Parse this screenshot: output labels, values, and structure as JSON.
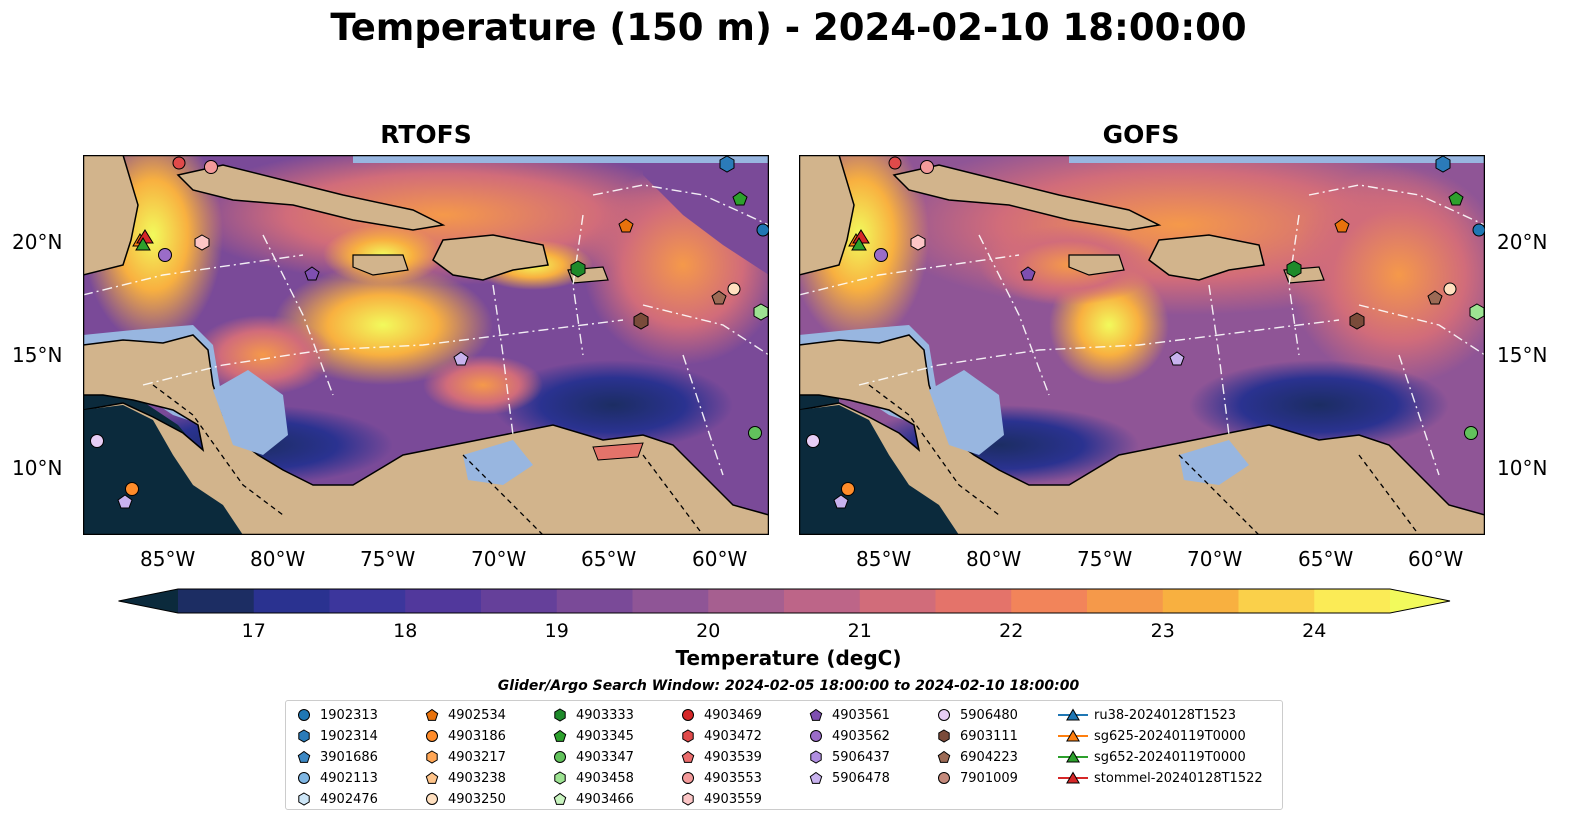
{
  "title": "Temperature (150 m) - 2024-02-10 18:00:00",
  "panels": [
    {
      "title": "RTOFS"
    },
    {
      "title": "GOFS"
    }
  ],
  "map": {
    "lon_ticks": [
      "85°W",
      "80°W",
      "75°W",
      "70°W",
      "65°W",
      "60°W"
    ],
    "lat_ticks": [
      "20°N",
      "15°N",
      "10°N"
    ],
    "colors": {
      "ocean_deep": "#0b2a3c",
      "shallow_water": "#98b6e0",
      "land": "#d2b48c",
      "coast": "#000000",
      "boundary_line": "#ffffff"
    }
  },
  "colorbar": {
    "label": "Temperature (degC)",
    "ticks": [
      "17",
      "18",
      "19",
      "20",
      "21",
      "22",
      "23",
      "24"
    ],
    "min": 16.5,
    "max": 24.5,
    "extend": "both",
    "colors": [
      "#0b2a3c",
      "#1c2d63",
      "#2a3290",
      "#3c369c",
      "#51389c",
      "#65409a",
      "#7a4a98",
      "#8f5596",
      "#a65f90",
      "#bd6588",
      "#d16c7a",
      "#e4736a",
      "#f2845a",
      "#f5994a",
      "#f8b040",
      "#fad04a",
      "#fbeb56",
      "#f2fa5c"
    ]
  },
  "search_window": "Glider/Argo Search Window: 2024-02-05 18:00:00 to 2024-02-10 18:00:00",
  "legend": {
    "columns": [
      [
        {
          "label": "1902313",
          "marker": "circle",
          "color": "#1f77b4"
        },
        {
          "label": "1902314",
          "marker": "hexagon",
          "color": "#2b7bb9"
        },
        {
          "label": "3901686",
          "marker": "pentagon",
          "color": "#3c88c4"
        },
        {
          "label": "4902113",
          "marker": "circle",
          "color": "#7fb6e3"
        },
        {
          "label": "4902476",
          "marker": "hexagon",
          "color": "#cde6f7"
        }
      ],
      [
        {
          "label": "4902534",
          "marker": "pentagon",
          "color": "#e8720c"
        },
        {
          "label": "4903186",
          "marker": "circle",
          "color": "#ff8c2a"
        },
        {
          "label": "4903217",
          "marker": "hexagon",
          "color": "#ffa655"
        },
        {
          "label": "4903238",
          "marker": "pentagon",
          "color": "#ffc48a"
        },
        {
          "label": "4903250",
          "marker": "circle",
          "color": "#ffe0c0"
        }
      ],
      [
        {
          "label": "4903333",
          "marker": "hexagon",
          "color": "#1e8a2a"
        },
        {
          "label": "4903345",
          "marker": "pentagon",
          "color": "#2ca02c"
        },
        {
          "label": "4903347",
          "marker": "circle",
          "color": "#62c25c"
        },
        {
          "label": "4903458",
          "marker": "hexagon",
          "color": "#9de392"
        },
        {
          "label": "4903466",
          "marker": "pentagon",
          "color": "#c9f5c0"
        }
      ],
      [
        {
          "label": "4903469",
          "marker": "circle",
          "color": "#d62728"
        },
        {
          "label": "4903472",
          "marker": "hexagon",
          "color": "#e04a4a"
        },
        {
          "label": "4903539",
          "marker": "pentagon",
          "color": "#ea6c6c"
        },
        {
          "label": "4903553",
          "marker": "circle",
          "color": "#f39a9a"
        },
        {
          "label": "4903559",
          "marker": "hexagon",
          "color": "#fcc6c6"
        }
      ],
      [
        {
          "label": "4903561",
          "marker": "pentagon",
          "color": "#7e4fb0"
        },
        {
          "label": "4903562",
          "marker": "circle",
          "color": "#9a6cc8"
        },
        {
          "label": "5906437",
          "marker": "hexagon",
          "color": "#b08ee0"
        },
        {
          "label": "5906478",
          "marker": "pentagon",
          "color": "#c8b2ee"
        }
      ],
      [
        {
          "label": "5906480",
          "marker": "circle",
          "color": "#e7cdf5"
        },
        {
          "label": "6903111",
          "marker": "hexagon",
          "color": "#7a4b3a"
        },
        {
          "label": "6904223",
          "marker": "pentagon",
          "color": "#9c6a55"
        },
        {
          "label": "7901009",
          "marker": "circle",
          "color": "#c48a7c"
        }
      ],
      [
        {
          "label": "ru38-20240128T1523",
          "marker": "triangle-line",
          "color": "#1f77b4"
        },
        {
          "label": "sg625-20240119T0000",
          "marker": "triangle-line",
          "color": "#ff7f0e"
        },
        {
          "label": "sg652-20240119T0000",
          "marker": "triangle-line",
          "color": "#2ca02c"
        },
        {
          "label": "stommel-20240128T1522",
          "marker": "triangle-line",
          "color": "#d62728"
        }
      ]
    ]
  }
}
